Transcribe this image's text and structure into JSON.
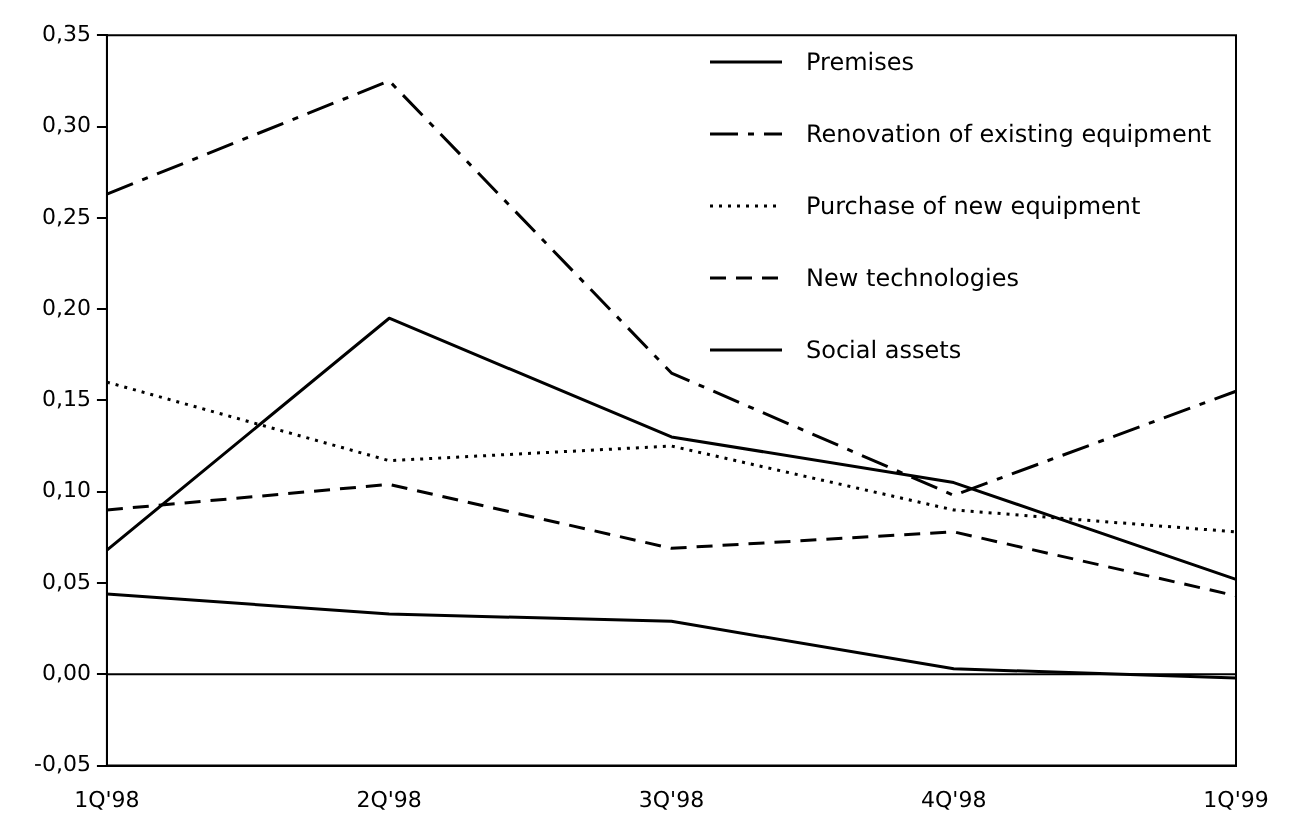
{
  "chart_data": {
    "type": "line",
    "categories": [
      "1Q'98",
      "2Q'98",
      "3Q'98",
      "4Q'98",
      "1Q'99"
    ],
    "series": [
      {
        "name": "Premises",
        "color": "#000000",
        "line_style": "solid",
        "values": [
          0.068,
          0.195,
          0.13,
          0.105,
          0.052
        ]
      },
      {
        "name": "Renovation of existing equipment",
        "color": "#000000",
        "line_style": "dashdot",
        "values": [
          0.263,
          0.325,
          0.165,
          0.098,
          0.155
        ]
      },
      {
        "name": "Purchase of new equipment",
        "color": "#000000",
        "line_style": "dotted",
        "values": [
          0.16,
          0.117,
          0.125,
          0.09,
          0.078
        ]
      },
      {
        "name": "New technologies",
        "color": "#000000",
        "line_style": "dashed",
        "values": [
          0.09,
          0.104,
          0.069,
          0.078,
          0.043
        ]
      },
      {
        "name": "Social assets",
        "color": "#000000",
        "line_style": "solid",
        "values": [
          0.044,
          0.033,
          0.029,
          0.003,
          -0.002
        ]
      }
    ],
    "ylim": [
      -0.05,
      0.35
    ],
    "yticks": [
      {
        "value": -0.05,
        "label": "-0,05"
      },
      {
        "value": 0,
        "label": "0,00"
      },
      {
        "value": 0.05,
        "label": "0,05"
      },
      {
        "value": 0.1,
        "label": "0,10"
      },
      {
        "value": 0.15,
        "label": "0,15"
      },
      {
        "value": 0.2,
        "label": "0,20"
      },
      {
        "value": 0.25,
        "label": "0,25"
      },
      {
        "value": 0.3,
        "label": "0,30"
      },
      {
        "value": 0.35,
        "label": "0,35"
      }
    ],
    "ref_lines": [
      {
        "axis": "y",
        "value": 0,
        "color": "#000000"
      }
    ],
    "grid": false,
    "marker": "none",
    "legend": "top right"
  }
}
